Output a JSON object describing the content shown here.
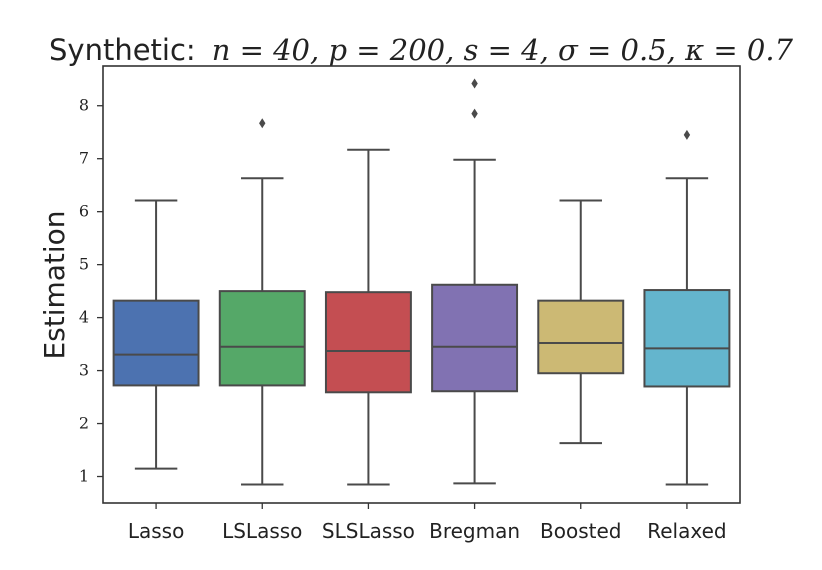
{
  "chart_data": {
    "type": "box",
    "title_prefix": "Synthetic:",
    "title_params": "n = 40, p = 200, s = 4, σ = 0.5, κ = 0.7",
    "xlabel": "",
    "ylabel": "Estimation",
    "ylim": [
      0.5,
      8.75
    ],
    "yticks": [
      "1",
      "2",
      "3",
      "4",
      "5",
      "6",
      "7",
      "8"
    ],
    "grid": false,
    "categories": [
      "Lasso",
      "LSLasso",
      "SLSLasso",
      "Bregman",
      "Boosted",
      "Relaxed"
    ],
    "colors": [
      "#4c72b0",
      "#55a868",
      "#c44e52",
      "#8172b2",
      "#ccb974",
      "#64b5cd"
    ],
    "series": [
      {
        "whisker_low": 1.15,
        "q1": 2.72,
        "median": 3.3,
        "q3": 4.32,
        "whisker_high": 6.21,
        "outliers": []
      },
      {
        "whisker_low": 0.85,
        "q1": 2.72,
        "median": 3.45,
        "q3": 4.5,
        "whisker_high": 6.63,
        "outliers": [
          7.67
        ]
      },
      {
        "whisker_low": 0.85,
        "q1": 2.59,
        "median": 3.37,
        "q3": 4.48,
        "whisker_high": 7.17,
        "outliers": []
      },
      {
        "whisker_low": 0.87,
        "q1": 2.61,
        "median": 3.45,
        "q3": 4.62,
        "whisker_high": 6.98,
        "outliers": [
          7.85,
          8.42
        ]
      },
      {
        "whisker_low": 1.63,
        "q1": 2.95,
        "median": 3.52,
        "q3": 4.32,
        "whisker_high": 6.21,
        "outliers": []
      },
      {
        "whisker_low": 0.85,
        "q1": 2.7,
        "median": 3.42,
        "q3": 4.52,
        "whisker_high": 6.63,
        "outliers": [
          7.45
        ]
      }
    ]
  }
}
